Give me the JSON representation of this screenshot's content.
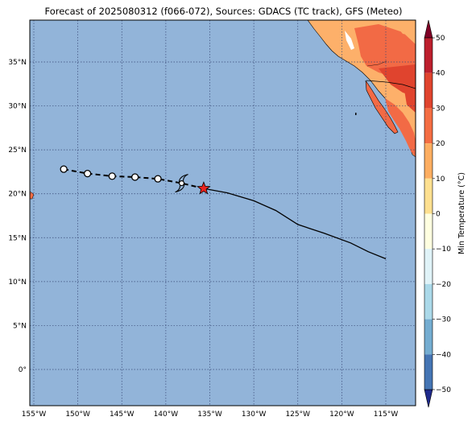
{
  "title": "Forecast of 2025080312 (f066-072), Sources: GDACS (TC track), GFS (Meteo)",
  "map": {
    "lon_ticks": [
      "155°W",
      "150°W",
      "145°W",
      "140°W",
      "135°W",
      "130°W",
      "125°W",
      "120°W",
      "115°W"
    ],
    "lat_ticks": [
      "35°N",
      "30°N",
      "25°N",
      "20°N",
      "15°N",
      "10°N",
      "5°N",
      "0°"
    ],
    "ocean_color": "#92b4d9",
    "grid": true
  },
  "track": {
    "past_positions": [
      {
        "lon": -151.6,
        "lat": 22.8
      },
      {
        "lon": -148.9,
        "lat": 22.3
      },
      {
        "lon": -146.1,
        "lat": 22.0
      },
      {
        "lon": -143.5,
        "lat": 21.9
      },
      {
        "lon": -140.9,
        "lat": 21.7
      }
    ],
    "storm_symbol": {
      "lon": -138.2,
      "lat": 21.2,
      "icon": "tropical-storm-icon"
    },
    "current_position": {
      "lon": -135.7,
      "lat": 20.6,
      "icon": "star-icon",
      "color": "#e8231e"
    },
    "forecast_path": [
      [
        -135.7,
        20.6
      ],
      [
        -133.0,
        20.1
      ],
      [
        -130.0,
        19.2
      ],
      [
        -127.5,
        18.1
      ],
      [
        -125.0,
        16.5
      ],
      [
        -122.0,
        15.5
      ],
      [
        -119.0,
        14.4
      ],
      [
        -117.0,
        13.4
      ],
      [
        -115.0,
        12.6
      ]
    ]
  },
  "colorbar": {
    "label": "Min Temperature (°C)",
    "ticks": [
      "50",
      "40",
      "30",
      "20",
      "10",
      "0",
      "−10",
      "−20",
      "−30",
      "−40",
      "−50"
    ],
    "colors": [
      "#67001f",
      "#b2182b",
      "#d6604d",
      "#f4a582",
      "#fddbc7",
      "#ffffff",
      "#d1e5f0",
      "#92c5de",
      "#4393c3",
      "#2166ac",
      "#053061"
    ],
    "bands": [
      "#800026",
      "#bd1f2d",
      "#e0442e",
      "#f46d43",
      "#fdae61",
      "#fee090",
      "#ffffe0",
      "#e0f3f8",
      "#abd9e9",
      "#74add1",
      "#4575b4",
      "#2c4fa0",
      "#1f2a8c"
    ]
  }
}
